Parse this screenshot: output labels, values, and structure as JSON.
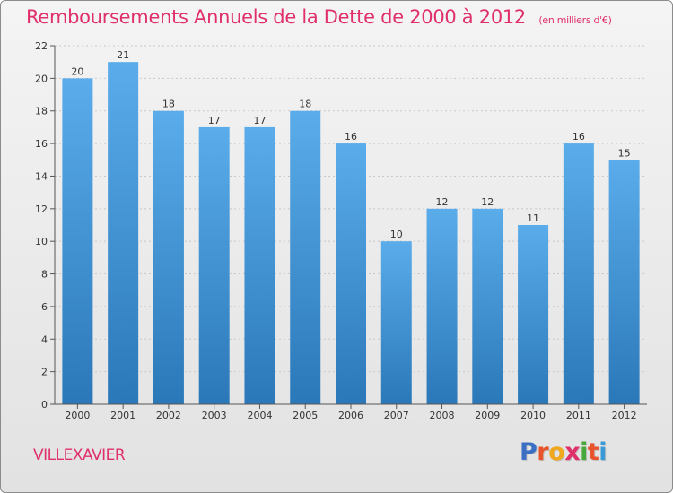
{
  "header": {
    "title": "Remboursements Annuels de la Dette de 2000 à 2012",
    "unit_note": "(en milliers d'€)"
  },
  "footer": {
    "place": "VILLEXAVIER",
    "logo_letters": [
      "P",
      "r",
      "o",
      "x",
      "i",
      "t",
      "i"
    ],
    "logo_colors": [
      "#3b6fc4",
      "#e8542c",
      "#f0a81e",
      "#e0306a",
      "#48a83a",
      "#e8542c",
      "#3b9ad6"
    ]
  },
  "colors": {
    "title": "#e0306a",
    "bar_top": "#5aacea",
    "bar_bottom": "#2b78b8",
    "axis": "#555555",
    "grid": "#c8c8c8"
  },
  "chart_data": {
    "type": "bar",
    "categories": [
      "2000",
      "2001",
      "2002",
      "2003",
      "2004",
      "2005",
      "2006",
      "2007",
      "2008",
      "2009",
      "2010",
      "2011",
      "2012"
    ],
    "values": [
      20,
      21,
      18,
      17,
      17,
      18,
      16,
      10,
      12,
      12,
      11,
      16,
      15
    ],
    "data_labels": [
      "20",
      "21",
      "18",
      "17",
      "17",
      "18",
      "16",
      "10",
      "12",
      "12",
      "11",
      "16",
      "15"
    ],
    "yticks": [
      0,
      2,
      4,
      6,
      8,
      10,
      12,
      14,
      16,
      18,
      20,
      22
    ],
    "ylim": [
      0,
      22
    ],
    "grid": true,
    "xlabel": "",
    "ylabel": ""
  }
}
